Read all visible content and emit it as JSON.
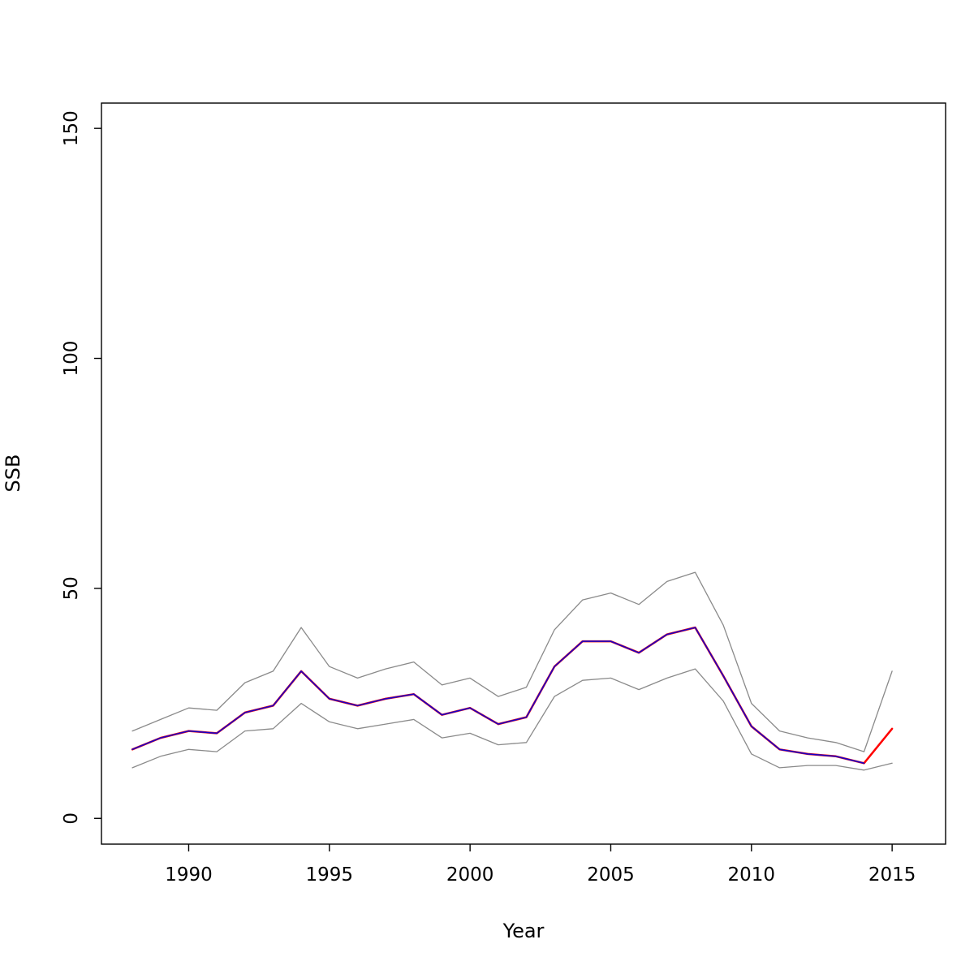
{
  "chart_data": {
    "type": "line",
    "title": "",
    "xlabel": "Year",
    "ylabel": "SSB",
    "xlim": [
      1986.9,
      2016.9
    ],
    "ylim": [
      -5.6,
      155.5
    ],
    "x_ticks": [
      1990,
      1995,
      2000,
      2005,
      2010,
      2015
    ],
    "y_ticks": [
      0,
      50,
      100,
      150
    ],
    "grid": "off",
    "legend": "none",
    "colors": {
      "confidence_interval": "#8a8a8a",
      "current_assessment": "#ff0000",
      "previous_assessment": "#1500c8",
      "axis": "#000000"
    },
    "series": [
      {
        "name": "upper-confidence-bound",
        "color": "#8a8a8a",
        "width": 1.3,
        "x": [
          1988,
          1989,
          1990,
          1991,
          1992,
          1993,
          1994,
          1995,
          1996,
          1997,
          1998,
          1999,
          2000,
          2001,
          2002,
          2003,
          2004,
          2005,
          2006,
          2007,
          2008,
          2009,
          2010,
          2011,
          2012,
          2013,
          2014,
          2015
        ],
        "values": [
          19,
          21.5,
          24,
          23.5,
          29.5,
          32,
          41.5,
          33,
          30.5,
          32.5,
          34,
          29,
          30.5,
          26.5,
          28.5,
          41,
          47.5,
          49,
          46.5,
          51.5,
          53.5,
          42,
          25,
          19,
          17.5,
          16.5,
          14.5,
          32
        ]
      },
      {
        "name": "lower-confidence-bound",
        "color": "#8a8a8a",
        "width": 1.3,
        "x": [
          1988,
          1989,
          1990,
          1991,
          1992,
          1993,
          1994,
          1995,
          1996,
          1997,
          1998,
          1999,
          2000,
          2001,
          2002,
          2003,
          2004,
          2005,
          2006,
          2007,
          2008,
          2009,
          2010,
          2011,
          2012,
          2013,
          2014,
          2015
        ],
        "values": [
          11,
          13.5,
          15,
          14.5,
          19,
          19.5,
          25,
          21,
          19.5,
          20.5,
          21.5,
          17.5,
          18.5,
          16,
          16.5,
          26.5,
          30,
          30.5,
          28,
          30.5,
          32.5,
          25.5,
          14,
          11,
          11.5,
          11.5,
          10.5,
          12
        ]
      },
      {
        "name": "current-assessment-ssb",
        "color": "#ff0000",
        "width": 2.5,
        "x": [
          1988,
          1989,
          1990,
          1991,
          1992,
          1993,
          1994,
          1995,
          1996,
          1997,
          1998,
          1999,
          2000,
          2001,
          2002,
          2003,
          2004,
          2005,
          2006,
          2007,
          2008,
          2009,
          2010,
          2011,
          2012,
          2013,
          2014,
          2015
        ],
        "values": [
          15,
          17.5,
          19,
          18.5,
          23,
          24.5,
          32,
          26,
          24.5,
          26,
          27,
          22.5,
          24,
          20.5,
          22,
          33,
          38.5,
          38.5,
          36,
          40,
          41.5,
          31,
          20,
          15,
          14,
          13.5,
          12,
          19.5
        ]
      },
      {
        "name": "previous-assessment-ssb",
        "color": "#1500c8",
        "width": 1.6,
        "x": [
          1988,
          1989,
          1990,
          1991,
          1992,
          1993,
          1994,
          1995,
          1996,
          1997,
          1998,
          1999,
          2000,
          2001,
          2002,
          2003,
          2004,
          2005,
          2006,
          2007,
          2008,
          2009,
          2010,
          2011,
          2012,
          2013,
          2014
        ],
        "values": [
          15,
          17.5,
          19,
          18.5,
          23,
          24.5,
          32,
          26,
          24.5,
          26,
          27,
          22.5,
          24,
          20.5,
          22,
          33,
          38.5,
          38.5,
          36,
          40,
          41.5,
          31,
          20,
          15,
          14,
          13.5,
          12
        ]
      }
    ]
  }
}
